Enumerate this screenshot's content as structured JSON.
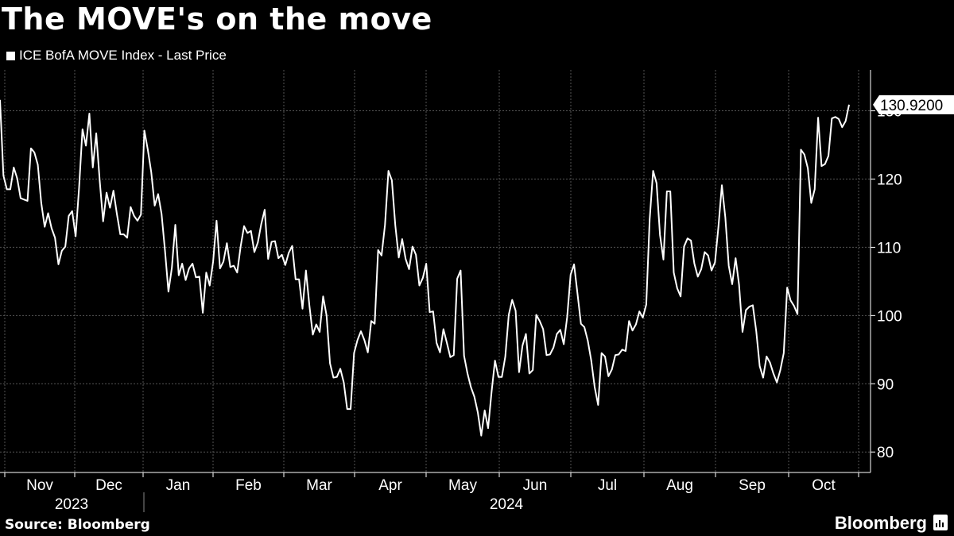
{
  "header": {
    "title": "The MOVE's on the move"
  },
  "footer": {
    "source": "Source: Bloomberg",
    "brand": "Bloomberg"
  },
  "colors": {
    "background": "#000000",
    "line": "#ffffff",
    "grid": "#555555"
  },
  "chart_data": {
    "type": "line",
    "title": "The MOVE's on the move",
    "legend_position": "top-left",
    "grid": true,
    "y_axis_position": "right",
    "ylim": [
      77,
      136
    ],
    "y_ticks": [
      80,
      90,
      100,
      110,
      120,
      130
    ],
    "x_month_labels": [
      "Nov",
      "Dec",
      "Jan",
      "Feb",
      "Mar",
      "Apr",
      "May",
      "Jun",
      "Jul",
      "Aug",
      "Sep",
      "Oct"
    ],
    "x_year_labels": [
      "2023",
      "2024"
    ],
    "last_value_label": "130.9200",
    "series": [
      {
        "name": "ICE BofA MOVE Index - Last Price",
        "values": [
          131.6,
          120.5,
          118.5,
          118.5,
          121.7,
          120.1,
          117.2,
          117.0,
          116.8,
          124.5,
          123.9,
          122.1,
          116.5,
          113.0,
          115.0,
          112.8,
          111.4,
          107.5,
          109.5,
          110.1,
          114.6,
          115.3,
          111.6,
          118.7,
          127.3,
          124.9,
          129.6,
          121.7,
          126.7,
          119.8,
          113.8,
          118.0,
          115.8,
          118.3,
          114.9,
          111.9,
          111.9,
          111.4,
          115.9,
          114.6,
          113.9,
          114.8,
          127.1,
          124.3,
          121.0,
          116.1,
          117.8,
          114.9,
          109.5,
          103.5,
          107.0,
          113.3,
          105.9,
          107.6,
          105.2,
          106.9,
          107.6,
          105.6,
          105.7,
          100.4,
          106.3,
          104.4,
          107.9,
          113.9,
          106.9,
          107.9,
          110.6,
          107.1,
          107.3,
          106.3,
          110.1,
          113.1,
          112.1,
          112.4,
          109.3,
          110.7,
          113.4,
          115.5,
          108.3,
          110.8,
          110.9,
          108.4,
          108.9,
          107.4,
          109.2,
          110.2,
          105.3,
          105.3,
          101.0,
          106.6,
          101.5,
          97.2,
          98.7,
          97.6,
          102.8,
          100.0,
          93.0,
          90.9,
          91.0,
          92.2,
          90.2,
          86.3,
          86.3,
          94.5,
          96.4,
          97.7,
          96.4,
          94.6,
          99.2,
          98.8,
          109.6,
          108.8,
          113.3,
          121.2,
          119.8,
          113.2,
          108.5,
          111.2,
          108.3,
          106.8,
          110.1,
          108.9,
          104.4,
          105.5,
          107.6,
          100.5,
          100.6,
          96.0,
          94.6,
          98.0,
          96.0,
          93.9,
          94.2,
          105.4,
          106.6,
          94.1,
          91.5,
          89.5,
          88.1,
          85.8,
          82.4,
          86.1,
          83.5,
          88.8,
          93.4,
          91.0,
          91.0,
          94.0,
          100.1,
          102.3,
          100.7,
          91.7,
          95.6,
          97.3,
          91.5,
          92.0,
          100.1,
          99.2,
          98.0,
          94.2,
          94.3,
          95.3,
          97.3,
          97.9,
          95.8,
          99.8,
          106.0,
          107.5,
          103.2,
          98.8,
          98.3,
          96.3,
          93.4,
          89.5,
          86.9,
          94.5,
          94.0,
          91.1,
          92.1,
          94.2,
          94.3,
          95.0,
          94.8,
          99.2,
          97.8,
          98.7,
          100.6,
          99.7,
          101.6,
          114.1,
          121.2,
          119.4,
          111.8,
          108.2,
          118.2,
          118.2,
          106.3,
          104.0,
          102.8,
          110.1,
          111.3,
          111.0,
          107.6,
          105.7,
          106.8,
          109.3,
          108.8,
          106.6,
          107.8,
          113.0,
          119.1,
          114.4,
          107.3,
          104.6,
          108.4,
          104.5,
          97.6,
          100.8,
          101.3,
          101.5,
          97.7,
          92.6,
          90.9,
          94.0,
          93.1,
          91.5,
          90.2,
          92.0,
          94.5,
          104.1,
          102.2,
          101.4,
          100.2,
          124.3,
          123.6,
          121.6,
          116.5,
          118.5,
          129.0,
          121.9,
          122.2,
          123.4,
          128.9,
          129.1,
          128.8,
          127.6,
          128.5,
          130.9
        ]
      }
    ]
  }
}
